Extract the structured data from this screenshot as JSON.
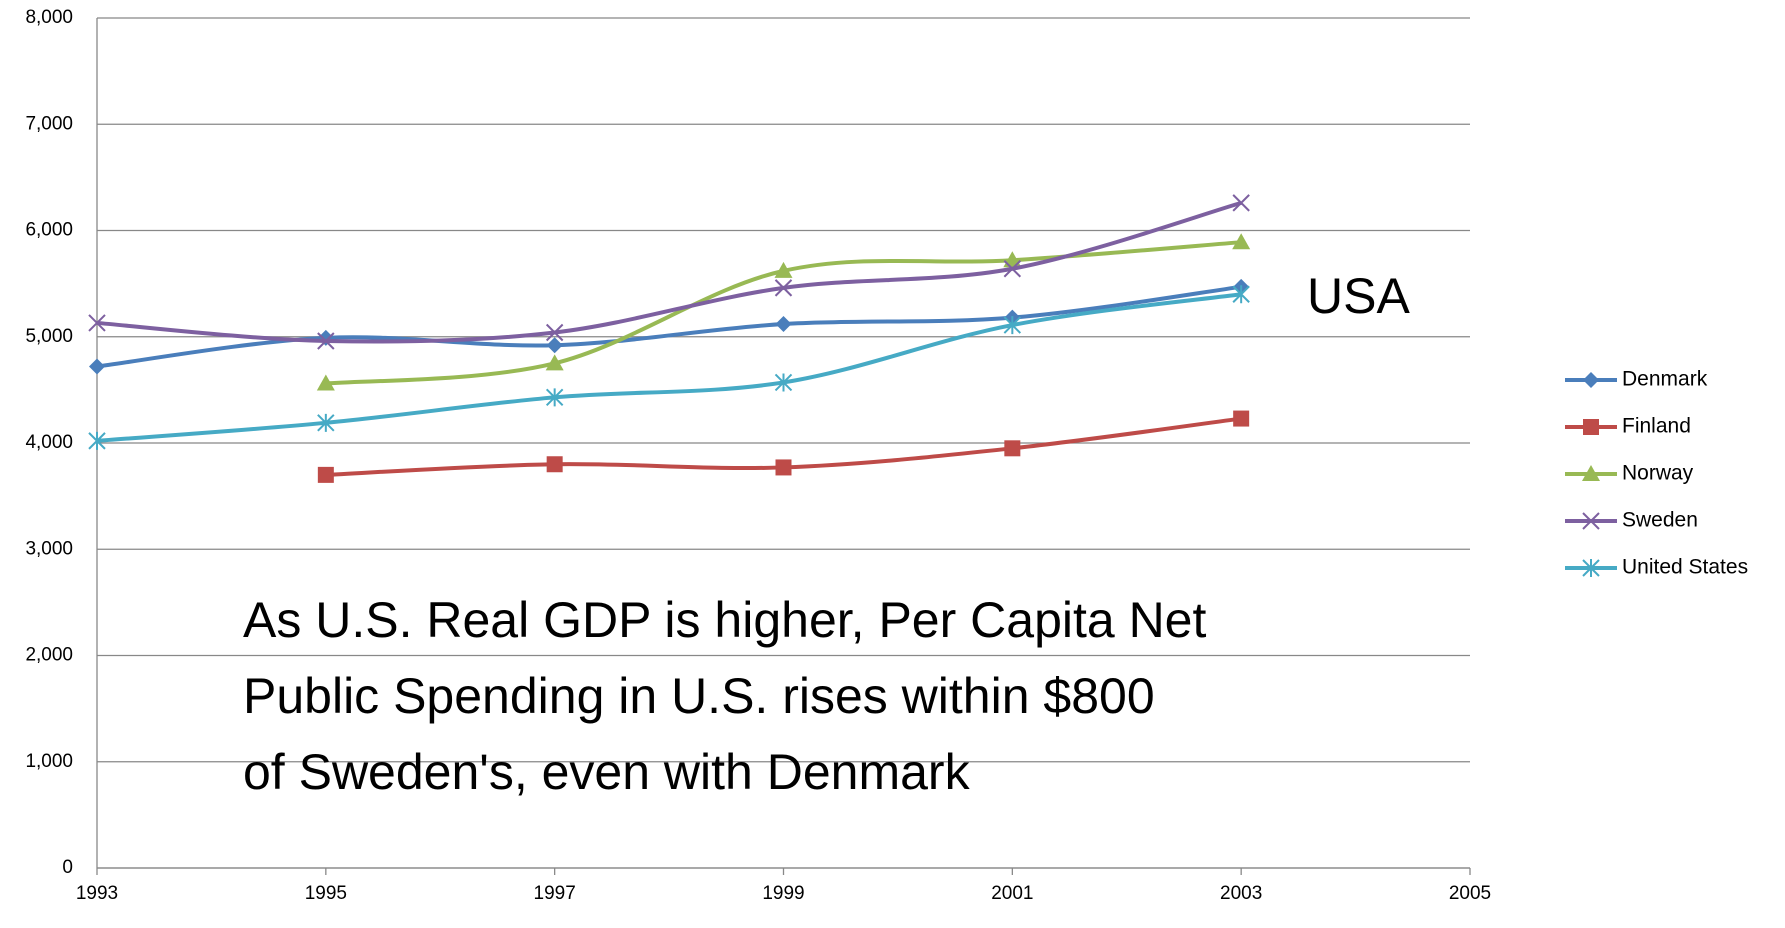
{
  "chart_data": {
    "type": "line",
    "x": [
      1993,
      1995,
      1997,
      1999,
      2001,
      2003
    ],
    "xlim": [
      1993,
      2005
    ],
    "xticks": [
      1993,
      1995,
      1997,
      1999,
      2001,
      2003,
      2005
    ],
    "ylim": [
      0,
      8000
    ],
    "yticks": [
      0,
      {
        "value": 1000,
        "label": "1,000"
      },
      {
        "value": 2000,
        "label": "2,000"
      },
      {
        "value": 3000,
        "label": "3,000"
      },
      {
        "value": 4000,
        "label": "4,000"
      },
      {
        "value": 5000,
        "label": "5,000"
      },
      {
        "value": 6000,
        "label": "6,000"
      },
      {
        "value": 7000,
        "label": "7,000"
      },
      {
        "value": 8000,
        "label": "8,000"
      }
    ],
    "grid": true,
    "smooth": true,
    "legend": "right",
    "series": [
      {
        "name": "Denmark",
        "color": "#4a7ebb",
        "marker": "diamond",
        "values": [
          4720,
          4990,
          4920,
          5120,
          5180,
          5470
        ]
      },
      {
        "name": "Finland",
        "color": "#be4b48",
        "marker": "square",
        "values": [
          null,
          3700,
          3800,
          3770,
          3950,
          4230
        ]
      },
      {
        "name": "Norway",
        "color": "#98b954",
        "marker": "triangle",
        "values": [
          null,
          4560,
          4750,
          5620,
          5720,
          5890
        ]
      },
      {
        "name": "Sweden",
        "color": "#7d60a0",
        "marker": "x",
        "values": [
          5130,
          4960,
          5040,
          5460,
          5640,
          6260
        ]
      },
      {
        "name": "United States",
        "color": "#46aac5",
        "marker": "star",
        "values": [
          4020,
          4190,
          4430,
          4570,
          5110,
          5400
        ]
      }
    ],
    "annotations": [
      "USA",
      "As U.S. Real GDP is higher, Per Capita Net",
      "Public Spending in U.S. rises within $800",
      "of Sweden's, even with Denmark"
    ]
  }
}
